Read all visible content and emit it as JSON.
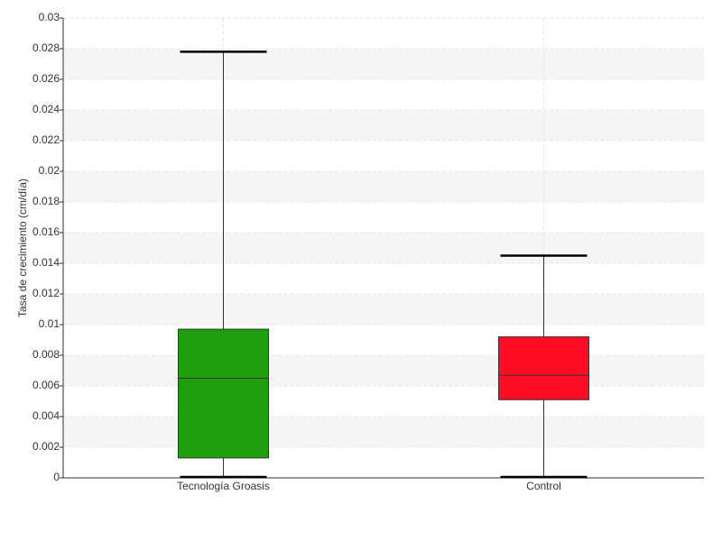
{
  "chart_data": {
    "type": "box",
    "y_label": "Tasa de crecimiento (cm/día)",
    "categories": [
      "Tecnología Groasis",
      "Control"
    ],
    "colors": [
      "#1f9e0d",
      "#ff0d25"
    ],
    "boxes": [
      {
        "min": 0,
        "q1": 0.0013,
        "median": 0.0065,
        "q3": 0.0097,
        "max": 0.0278
      },
      {
        "min": 0,
        "q1": 0.0051,
        "median": 0.0067,
        "q3": 0.0092,
        "max": 0.0145
      }
    ],
    "ylim": [
      0,
      0.03
    ],
    "yticks": [
      0,
      0.002,
      0.004,
      0.006,
      0.008,
      0.01,
      0.012,
      0.014,
      0.016,
      0.018,
      0.02,
      0.022,
      0.024,
      0.026,
      0.028,
      0.03
    ],
    "grid": true
  }
}
